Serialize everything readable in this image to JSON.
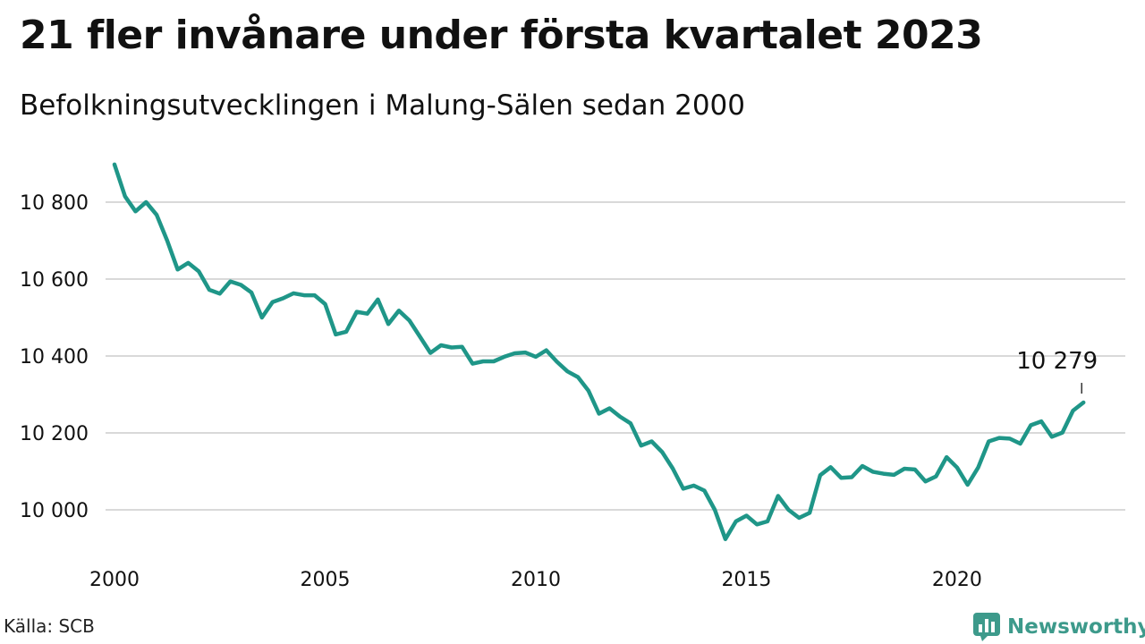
{
  "header": {
    "title": "21 fler invånare under första kvartalet 2023",
    "subtitle": "Befolkningsutvecklingen i Malung-Sälen sedan 2000"
  },
  "footer": {
    "source": "Källa: SCB",
    "brand": "Newsworthy",
    "brand_logo_icon": "bar-chart-speech-bubble-icon"
  },
  "colors": {
    "line": "#1f9688",
    "grid": "#d9d9d9",
    "text": "#111111",
    "brand": "#3d9a8b"
  },
  "chart_data": {
    "type": "line",
    "title": "21 fler invånare under första kvartalet 2023",
    "subtitle": "Befolkningsutvecklingen i Malung-Sälen sedan 2000",
    "xlabel": "",
    "ylabel": "",
    "x_tick_labels": [
      "2000",
      "2005",
      "2010",
      "2015",
      "2020"
    ],
    "x_ticks": [
      2000,
      2005,
      2010,
      2015,
      2020
    ],
    "y_tick_labels": [
      "10 000",
      "10 200",
      "10 400",
      "10 600",
      "10 800"
    ],
    "y_ticks": [
      10000,
      10200,
      10400,
      10600,
      10800
    ],
    "xlim": [
      2000,
      2023.25
    ],
    "ylim": [
      9900,
      10920
    ],
    "grid": true,
    "legend": "none",
    "annotation": {
      "text": "10 279",
      "x": 2023.0,
      "y": 10279
    },
    "series": [
      {
        "x": [
          2000.0,
          2000.25,
          2000.5,
          2000.75,
          2001.0,
          2001.25,
          2001.5,
          2001.75,
          2002.0,
          2002.25,
          2002.5,
          2002.75,
          2003.0,
          2003.25,
          2003.5,
          2003.75,
          2004.0,
          2004.25,
          2004.5,
          2004.75,
          2005.0,
          2005.25,
          2005.5,
          2005.75,
          2006.0,
          2006.25,
          2006.5,
          2006.75,
          2007.0,
          2007.25,
          2007.5,
          2007.75,
          2008.0,
          2008.25,
          2008.5,
          2008.75,
          2009.0,
          2009.25,
          2009.5,
          2009.75,
          2010.0,
          2010.25,
          2010.5,
          2010.75,
          2011.0,
          2011.25,
          2011.5,
          2011.75,
          2012.0,
          2012.25,
          2012.5,
          2012.75,
          2013.0,
          2013.25,
          2013.5,
          2013.75,
          2014.0,
          2014.25,
          2014.5,
          2014.75,
          2015.0,
          2015.25,
          2015.5,
          2015.75,
          2016.0,
          2016.25,
          2016.5,
          2016.75,
          2017.0,
          2017.25,
          2017.5,
          2017.75,
          2018.0,
          2018.25,
          2018.5,
          2018.75,
          2019.0,
          2019.25,
          2019.5,
          2019.75,
          2020.0,
          2020.25,
          2020.5,
          2020.75,
          2021.0,
          2021.25,
          2021.5,
          2021.75,
          2022.0,
          2022.25,
          2022.5,
          2022.75,
          2023.0
        ],
        "values": [
          10898,
          10815,
          10776,
          10800,
          10767,
          10700,
          10625,
          10642,
          10620,
          10572,
          10562,
          10594,
          10585,
          10565,
          10500,
          10540,
          10550,
          10563,
          10558,
          10558,
          10535,
          10456,
          10463,
          10515,
          10510,
          10547,
          10483,
          10518,
          10492,
          10450,
          10408,
          10428,
          10422,
          10424,
          10380,
          10386,
          10386,
          10398,
          10407,
          10409,
          10398,
          10415,
          10385,
          10360,
          10345,
          10310,
          10250,
          10264,
          10242,
          10225,
          10167,
          10178,
          10150,
          10108,
          10055,
          10063,
          10050,
          10000,
          9924,
          9970,
          9985,
          9962,
          9970,
          10036,
          10000,
          9979,
          9992,
          10090,
          10111,
          10083,
          10085,
          10114,
          10099,
          10094,
          10091,
          10107,
          10105,
          10074,
          10087,
          10137,
          10110,
          10065,
          10110,
          10178,
          10187,
          10185,
          10172,
          10220,
          10230,
          10190,
          10201,
          10258,
          10279
        ]
      }
    ]
  }
}
